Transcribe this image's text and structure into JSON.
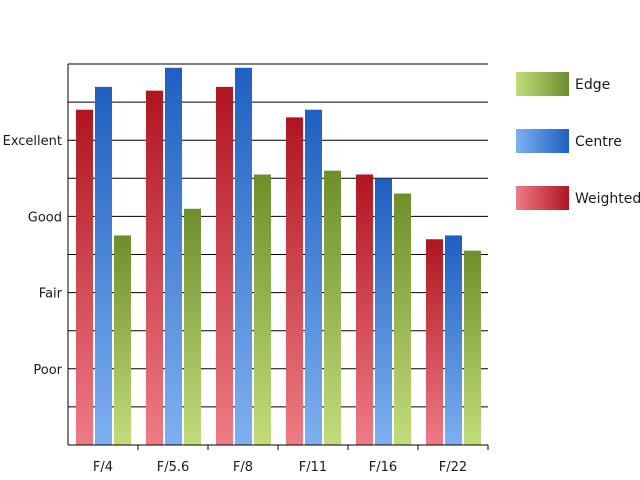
{
  "chart_data": {
    "type": "bar",
    "categories": [
      "F/4",
      "F/5.6",
      "F/8",
      "F/11",
      "F/16",
      "F/22"
    ],
    "series": [
      {
        "name": "Weighted",
        "values": [
          8.8,
          9.3,
          9.4,
          8.6,
          7.1,
          5.4
        ]
      },
      {
        "name": "Centre",
        "values": [
          9.4,
          9.9,
          9.9,
          8.8,
          7.0,
          5.5
        ]
      },
      {
        "name": "Edge",
        "values": [
          5.5,
          6.2,
          7.1,
          7.2,
          6.6,
          5.1
        ]
      }
    ],
    "legend_order": [
      "Edge",
      "Centre",
      "Weighted"
    ],
    "y_tick_labels": [
      {
        "value": 2,
        "label": "Poor"
      },
      {
        "value": 4,
        "label": "Fair"
      },
      {
        "value": 6,
        "label": "Good"
      },
      {
        "value": 8,
        "label": "Excellent"
      }
    ],
    "ylim": [
      0,
      10
    ],
    "y_grid_step": 1,
    "grid": true,
    "legend_position": "right",
    "colors": {
      "Weighted": {
        "light": "#ee7b86",
        "dark": "#b01520"
      },
      "Centre": {
        "light": "#7eb0f0",
        "dark": "#1f5fc0"
      },
      "Edge": {
        "light": "#c2dc7c",
        "dark": "#6e8e2c"
      }
    }
  }
}
